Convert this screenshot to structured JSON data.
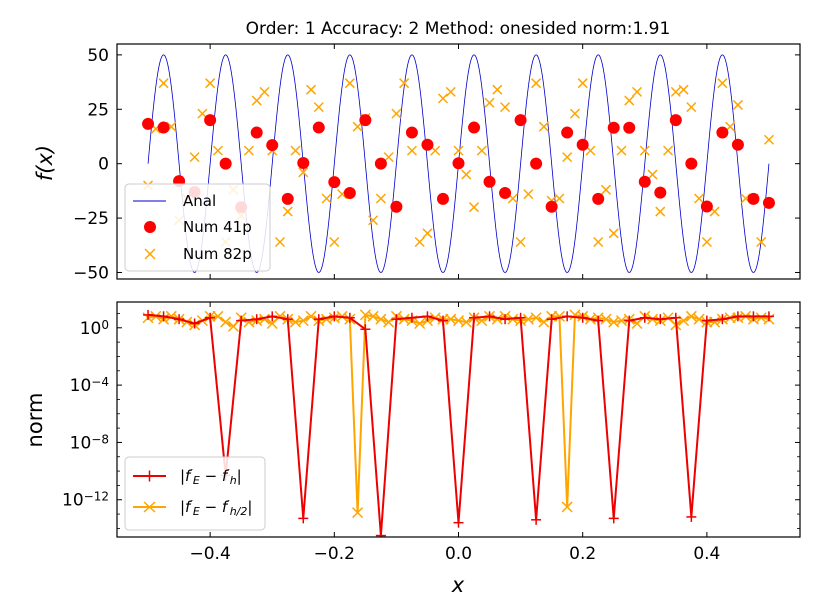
{
  "chart_data": [
    {
      "type": "line",
      "title": "Order: 1 Accuracy: 2 Method: onesided norm:1.91",
      "ylabel": "f(x)",
      "xlim": [
        -0.55,
        0.55
      ],
      "ylim": [
        -53,
        55
      ],
      "yticks": [
        50,
        25,
        0,
        -25,
        -50
      ],
      "ytick_labels": [
        "50",
        "25",
        "0",
        "−25",
        "−50"
      ],
      "analytic": {
        "name": "Anal",
        "amplitude": 50,
        "frequency": 10,
        "x_range": [
          -0.5,
          0.5
        ],
        "color": "#0000cc"
      },
      "series": [
        {
          "name": "Num 41p",
          "marker": "circle",
          "color": "#ff0000",
          "x": [
            -0.5,
            -0.475,
            -0.45,
            -0.425,
            -0.4,
            -0.375,
            -0.35,
            -0.325,
            -0.3,
            -0.275,
            -0.25,
            -0.225,
            -0.2,
            -0.175,
            -0.15,
            -0.125,
            -0.1,
            -0.075,
            -0.05,
            -0.025,
            0.0,
            0.025,
            0.05,
            0.075,
            0.1,
            0.125,
            0.15,
            0.175,
            0.2,
            0.225,
            0.25,
            0.275,
            0.3,
            0.325,
            0.35,
            0.375,
            0.4,
            0.425,
            0.45,
            0.475,
            0.5
          ],
          "y": [
            18.3,
            16.6,
            -8.0,
            -13.0,
            20.0,
            0.0,
            -20.0,
            14.3,
            8.5,
            -16.2,
            0.3,
            16.6,
            -8.5,
            -13.5,
            20.0,
            0.0,
            -19.8,
            14.3,
            8.7,
            -16.2,
            0.2,
            16.6,
            -8.3,
            -13.5,
            20.0,
            0.0,
            -19.8,
            14.3,
            8.7,
            -16.2,
            16.5,
            16.5,
            -8.3,
            -13.3,
            20.0,
            0.0,
            -19.7,
            14.3,
            8.7,
            -16.2,
            -18.0
          ]
        },
        {
          "name": "Num 82p",
          "marker": "x",
          "color": "#ffa500",
          "x": [
            -0.5,
            -0.4875,
            -0.475,
            -0.4625,
            -0.45,
            -0.4375,
            -0.425,
            -0.4125,
            -0.4,
            -0.3875,
            -0.375,
            -0.3625,
            -0.35,
            -0.3375,
            -0.325,
            -0.3125,
            -0.3,
            -0.2875,
            -0.275,
            -0.2625,
            -0.25,
            -0.2375,
            -0.225,
            -0.2125,
            -0.2,
            -0.1875,
            -0.175,
            -0.1625,
            -0.15,
            -0.1375,
            -0.125,
            -0.1125,
            -0.1,
            -0.0875,
            -0.075,
            -0.0625,
            -0.05,
            -0.0375,
            -0.025,
            -0.0125,
            0.0,
            0.0125,
            0.025,
            0.0375,
            0.05,
            0.0625,
            0.075,
            0.0875,
            0.1,
            0.1125,
            0.125,
            0.1375,
            0.15,
            0.1625,
            0.175,
            0.1875,
            0.2,
            0.2125,
            0.225,
            0.2375,
            0.25,
            0.2625,
            0.275,
            0.2875,
            0.3,
            0.3125,
            0.325,
            0.3375,
            0.35,
            0.3625,
            0.375,
            0.3875,
            0.4,
            0.4125,
            0.425,
            0.4375,
            0.45,
            0.4625,
            0.475,
            0.4875,
            0.5
          ],
          "y": [
            -10.0,
            16.0,
            37.0,
            17.0,
            -26.0,
            -16.0,
            3.0,
            23.0,
            37.0,
            6.0,
            -36.0,
            -12.0,
            -24.0,
            6.0,
            29.0,
            33.0,
            6.0,
            -36.0,
            -22.0,
            6.0,
            -4.0,
            34.0,
            26.0,
            -16.0,
            -36.0,
            -14.0,
            37.0,
            17.0,
            21.0,
            -26.0,
            -16.0,
            3.0,
            23.0,
            37.0,
            6.0,
            -36.0,
            -32.0,
            6.0,
            30.0,
            33.0,
            6.0,
            -5.0,
            -20.0,
            6.0,
            28.0,
            34.0,
            26.0,
            -16.0,
            -36.0,
            -14.0,
            37.0,
            17.0,
            -17.0,
            -16.0,
            3.0,
            23.0,
            37.0,
            6.0,
            -36.0,
            -12.0,
            -32.0,
            6.0,
            29.0,
            33.0,
            6.0,
            -5.0,
            -22.0,
            6.0,
            33.0,
            34.0,
            26.0,
            -16.0,
            -36.0,
            -22.0,
            37.0,
            17.0,
            27.0,
            -16.0,
            -16.0,
            -36.0,
            11.0
          ]
        }
      ],
      "legend": {
        "placement": "lower-left",
        "entries": [
          "Anal",
          "Num 41p",
          "Num 82p"
        ]
      }
    },
    {
      "type": "line",
      "ylabel": "norm",
      "xlabel": "x",
      "yscale": "log",
      "xlim": [
        -0.55,
        0.55
      ],
      "ylim_log10": [
        -14.6,
        1.8
      ],
      "xticks": [
        -0.4,
        -0.2,
        0.0,
        0.2,
        0.4
      ],
      "xtick_labels": [
        "−0.4",
        "−0.2",
        "0.0",
        "0.2",
        "0.4"
      ],
      "yticks_log10": [
        0,
        -4,
        -8,
        -12
      ],
      "ytick_labels": [
        "10",
        "10",
        "10",
        "10"
      ],
      "ytick_exponents": [
        "0",
        "−4",
        "−8",
        "−12"
      ],
      "series": [
        {
          "name": "|f′_E − f′_h|",
          "legend_parts": [
            "|f",
            "′",
            "E",
            " − f",
            "′",
            "h",
            "|"
          ],
          "marker": "+",
          "color": "#ee0000",
          "x": [
            -0.5,
            -0.475,
            -0.45,
            -0.425,
            -0.4,
            -0.375,
            -0.35,
            -0.325,
            -0.3,
            -0.275,
            -0.25,
            -0.225,
            -0.2,
            -0.175,
            -0.15,
            -0.125,
            -0.1,
            -0.075,
            -0.05,
            -0.025,
            0.0,
            0.025,
            0.05,
            0.075,
            0.1,
            0.125,
            0.15,
            0.175,
            0.2,
            0.225,
            0.25,
            0.275,
            0.3,
            0.325,
            0.35,
            0.375,
            0.4,
            0.425,
            0.45,
            0.475,
            0.5
          ],
          "log10_y": [
            0.9,
            0.8,
            0.6,
            0.3,
            0.7,
            -10.3,
            0.5,
            0.6,
            0.8,
            0.6,
            -13.3,
            0.6,
            0.8,
            0.7,
            -0.1,
            -14.5,
            0.6,
            0.7,
            0.8,
            0.5,
            -13.6,
            0.7,
            0.8,
            0.6,
            0.7,
            -13.4,
            0.6,
            0.8,
            0.7,
            0.5,
            -13.3,
            0.5,
            0.7,
            0.6,
            0.7,
            -13.2,
            0.5,
            0.6,
            0.8,
            0.8,
            0.8
          ]
        },
        {
          "name": "|f′_E − f′_h/2|",
          "legend_parts": [
            "|f",
            "′",
            "E",
            " − f",
            "′",
            "h/2",
            "|"
          ],
          "marker": "x",
          "color": "#ffa500",
          "x": [
            -0.5,
            -0.4875,
            -0.475,
            -0.4625,
            -0.45,
            -0.4375,
            -0.425,
            -0.4125,
            -0.4,
            -0.3875,
            -0.375,
            -0.3625,
            -0.35,
            -0.3375,
            -0.325,
            -0.3125,
            -0.3,
            -0.2875,
            -0.275,
            -0.2625,
            -0.25,
            -0.2375,
            -0.225,
            -0.2125,
            -0.2,
            -0.1875,
            -0.175,
            -0.1625,
            -0.15,
            -0.1375,
            -0.125,
            -0.1125,
            -0.1,
            -0.0875,
            -0.075,
            -0.0625,
            -0.05,
            -0.0375,
            -0.025,
            -0.0125,
            0.0,
            0.0125,
            0.025,
            0.0375,
            0.05,
            0.0625,
            0.075,
            0.0875,
            0.1,
            0.1125,
            0.125,
            0.1375,
            0.15,
            0.1625,
            0.175,
            0.1875,
            0.2,
            0.2125,
            0.225,
            0.2375,
            0.25,
            0.2625,
            0.275,
            0.2875,
            0.3,
            0.3125,
            0.325,
            0.3375,
            0.35,
            0.3625,
            0.375,
            0.3875,
            0.4,
            0.4125,
            0.425,
            0.4375,
            0.45,
            0.4625,
            0.475,
            0.4875,
            0.5
          ],
          "log10_y": [
            0.7,
            0.8,
            0.6,
            0.8,
            0.6,
            0.4,
            0.2,
            0.5,
            0.8,
            0.8,
            0.4,
            0.1,
            0.7,
            0.4,
            0.5,
            0.6,
            0.3,
            0.8,
            0.6,
            0.4,
            0.5,
            0.8,
            0.5,
            0.6,
            0.7,
            0.8,
            0.6,
            -12.9,
            0.9,
            0.8,
            0.6,
            0.4,
            0.8,
            0.6,
            0.5,
            0.3,
            0.5,
            0.7,
            0.6,
            0.6,
            0.5,
            0.4,
            0.7,
            0.5,
            0.8,
            0.6,
            0.8,
            0.6,
            0.5,
            0.6,
            0.7,
            0.4,
            0.8,
            0.8,
            -12.5,
            0.9,
            0.8,
            0.6,
            0.7,
            0.6,
            0.4,
            0.5,
            0.6,
            0.3,
            0.8,
            0.6,
            0.5,
            0.7,
            0.2,
            0.5,
            0.8,
            0.6,
            0.4,
            0.4,
            0.6,
            0.7,
            0.7,
            0.8,
            0.6,
            0.7,
            0.6
          ]
        }
      ],
      "legend": {
        "placement": "lower-left"
      }
    }
  ]
}
